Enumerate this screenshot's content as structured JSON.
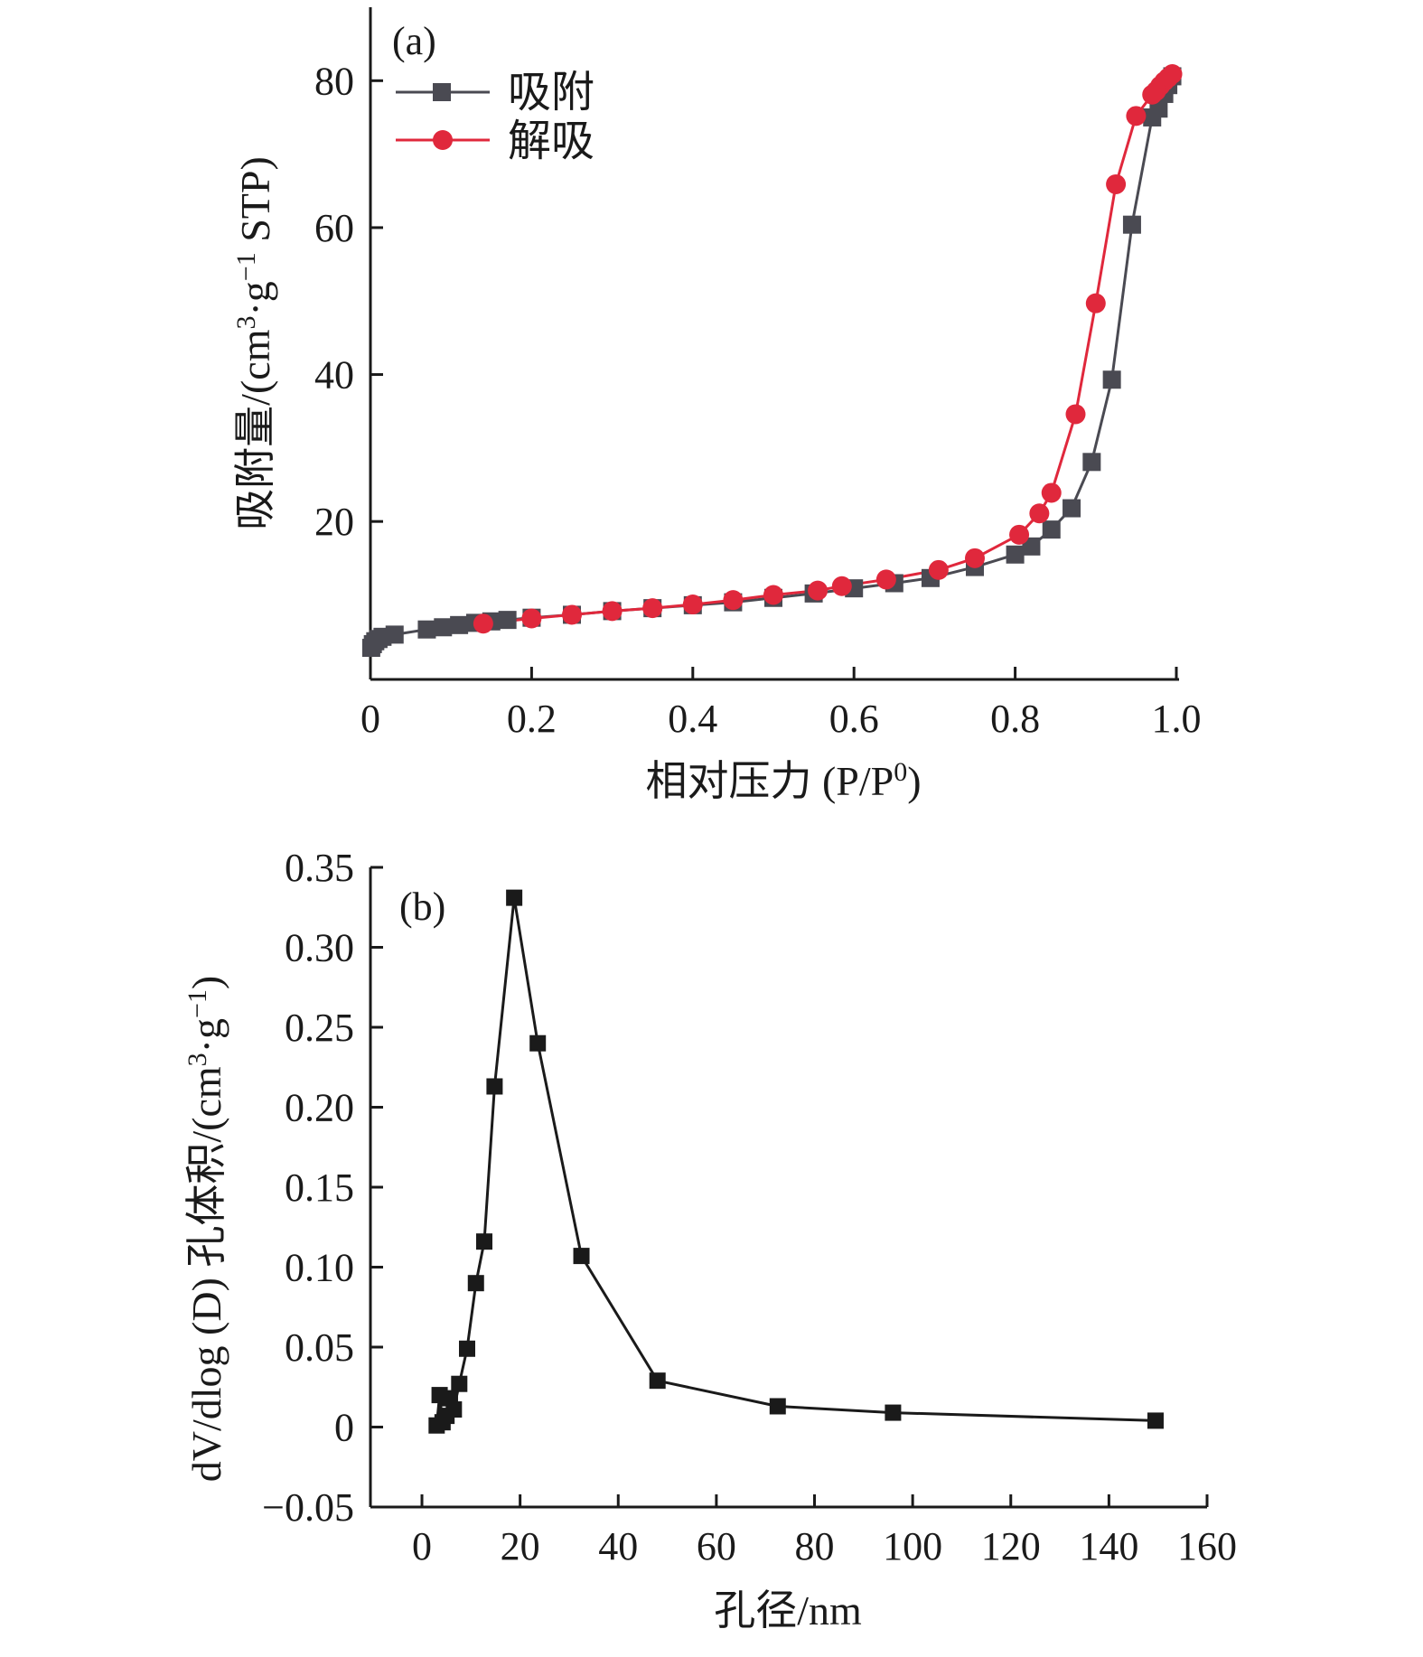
{
  "chart_data": [
    {
      "panel": "(a)",
      "type": "line",
      "xlabel": "相对压力 (P/P0)",
      "xlabel_parts": {
        "main": "相对压力 (P/P",
        "sup": "0",
        "tail": ")"
      },
      "ylabel": "吸附量/(cm3·g−1 STP)",
      "ylabel_parts": {
        "t1": "吸附量/(cm",
        "sup1": "3",
        "t2": "·g",
        "sup2": "−1",
        "t3": " STP)"
      },
      "xlim": [
        0,
        1.0
      ],
      "ylim": [
        -1.5,
        90
      ],
      "xticks": [
        0,
        0.2,
        0.4,
        0.6,
        0.8,
        1.0
      ],
      "xtick_labels": [
        "0",
        "0.2",
        "0.4",
        "0.6",
        "0.8",
        "1.0"
      ],
      "yticks": [
        20,
        40,
        60,
        80
      ],
      "ytick_labels": [
        "20",
        "40",
        "60",
        "80"
      ],
      "legend_position": "top-left",
      "grid": false,
      "series": [
        {
          "name": "吸附",
          "color": "#4a4a52",
          "marker": "square",
          "x": [
            0.001,
            0.003,
            0.006,
            0.01,
            0.015,
            0.03,
            0.07,
            0.09,
            0.11,
            0.13,
            0.15,
            0.17,
            0.2,
            0.25,
            0.3,
            0.35,
            0.4,
            0.45,
            0.5,
            0.55,
            0.6,
            0.65,
            0.695,
            0.75,
            0.8,
            0.82,
            0.845,
            0.87,
            0.895,
            0.92,
            0.945,
            0.97,
            0.978,
            0.985,
            0.99,
            0.995
          ],
          "y": [
            2.8,
            3.3,
            3.7,
            4.0,
            4.3,
            4.6,
            5.3,
            5.6,
            5.9,
            6.2,
            6.4,
            6.6,
            6.9,
            7.3,
            7.8,
            8.2,
            8.6,
            9.0,
            9.6,
            10.2,
            10.9,
            11.6,
            12.3,
            13.8,
            15.5,
            16.6,
            18.9,
            21.8,
            28.1,
            39.3,
            60.4,
            75.0,
            76.2,
            78.2,
            79.4,
            80.6
          ]
        },
        {
          "name": "解吸",
          "color": "#e0283c",
          "marker": "circle",
          "x": [
            0.995,
            0.99,
            0.985,
            0.98,
            0.975,
            0.97,
            0.95,
            0.925,
            0.9,
            0.875,
            0.845,
            0.83,
            0.805,
            0.75,
            0.705,
            0.64,
            0.585,
            0.555,
            0.5,
            0.45,
            0.4,
            0.35,
            0.3,
            0.25,
            0.2,
            0.14
          ],
          "y": [
            80.9,
            80.4,
            79.9,
            79.3,
            78.6,
            78.1,
            75.2,
            65.9,
            49.7,
            34.6,
            23.9,
            21.1,
            18.2,
            15.0,
            13.4,
            12.1,
            11.2,
            10.6,
            10.0,
            9.3,
            8.7,
            8.2,
            7.8,
            7.3,
            6.8,
            6.1
          ]
        }
      ]
    },
    {
      "panel": "(b)",
      "type": "line",
      "xlabel": "孔径/nm",
      "ylabel": "dV/dlog (D) 孔体积/(cm3·g−1)",
      "ylabel_parts": {
        "t1": "dV/dlog (D) 孔体积/(cm",
        "sup1": "3",
        "t2": "·g",
        "sup2": "−1",
        "t3": ")"
      },
      "xlim": [
        -10.5,
        160
      ],
      "ylim": [
        -0.05,
        0.35
      ],
      "xticks": [
        0,
        20,
        40,
        60,
        80,
        100,
        120,
        140,
        160
      ],
      "xtick_labels": [
        "0",
        "20",
        "40",
        "60",
        "80",
        "100",
        "120",
        "140",
        "160"
      ],
      "yticks": [
        -0.05,
        0,
        0.05,
        0.1,
        0.15,
        0.2,
        0.25,
        0.3,
        0.35
      ],
      "ytick_labels": [
        "−0.05",
        "0",
        "0.05",
        "0.10",
        "0.15",
        "0.20",
        "0.25",
        "0.30",
        "0.35"
      ],
      "grid": false,
      "series": [
        {
          "color": "#1a1a1a",
          "marker": "square",
          "x": [
            3.0,
            3.6,
            4.2,
            5.0,
            5.7,
            6.5,
            7.6,
            9.2,
            11.0,
            12.7,
            14.8,
            18.8,
            23.6,
            32.5,
            48.0,
            72.5,
            96.0,
            149.5
          ],
          "y": [
            0.001,
            0.02,
            0.003,
            0.007,
            0.018,
            0.011,
            0.027,
            0.049,
            0.09,
            0.116,
            0.213,
            0.331,
            0.24,
            0.107,
            0.029,
            0.013,
            0.009,
            0.004
          ]
        }
      ]
    }
  ]
}
